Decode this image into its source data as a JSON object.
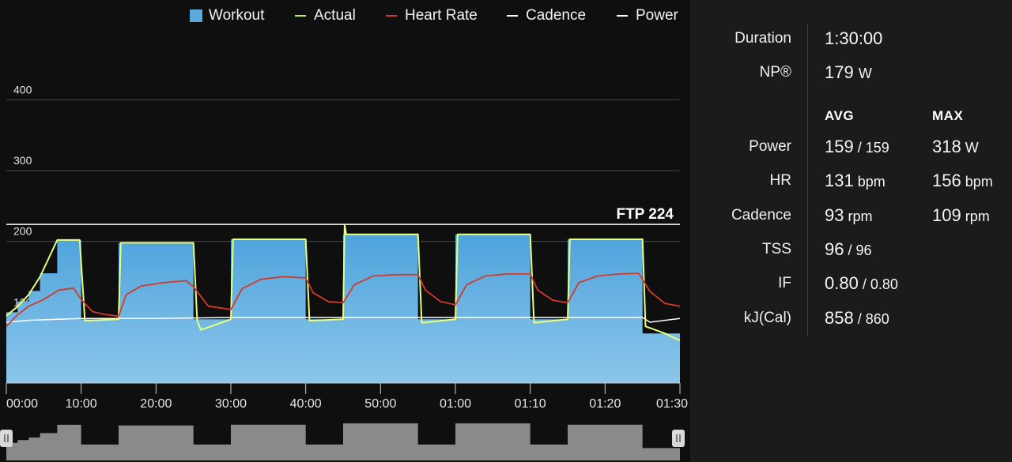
{
  "legend": {
    "workout": "Workout",
    "actual": "Actual",
    "heart_rate": "Heart Rate",
    "cadence": "Cadence",
    "power": "Power"
  },
  "colors": {
    "workout": "#5aaade",
    "actual": "#e8ff7a",
    "heart_rate": "#d23a2a",
    "cadence": "#ffffff",
    "power": "#ffffff"
  },
  "chart_data": {
    "type": "area",
    "xlabel": "",
    "ylabel": "",
    "x_ticks": [
      "00:00",
      "10:00",
      "20:00",
      "30:00",
      "40:00",
      "50:00",
      "01:00",
      "01:10",
      "01:20",
      "01:30"
    ],
    "y_ticks": [
      "100",
      "200",
      "300",
      "400"
    ],
    "xlim_minutes": [
      0,
      90
    ],
    "ylim_watts": [
      0,
      450
    ],
    "grid": "horizontal",
    "ftp_line": {
      "label": "FTP 224",
      "value": 224
    },
    "workout_steps": [
      {
        "start": 0,
        "end": 1.5,
        "watts": 100
      },
      {
        "start": 1.5,
        "end": 3,
        "watts": 115
      },
      {
        "start": 3,
        "end": 4.5,
        "watts": 130
      },
      {
        "start": 4.5,
        "end": 6.8,
        "watts": 155
      },
      {
        "start": 6.8,
        "end": 10,
        "watts": 202
      },
      {
        "start": 10,
        "end": 15,
        "watts": 90
      },
      {
        "start": 15,
        "end": 25,
        "watts": 198
      },
      {
        "start": 25,
        "end": 30,
        "watts": 90
      },
      {
        "start": 30,
        "end": 40,
        "watts": 203
      },
      {
        "start": 40,
        "end": 45,
        "watts": 90
      },
      {
        "start": 45,
        "end": 55,
        "watts": 210
      },
      {
        "start": 55,
        "end": 60,
        "watts": 90
      },
      {
        "start": 60,
        "end": 70,
        "watts": 210
      },
      {
        "start": 70,
        "end": 75,
        "watts": 90
      },
      {
        "start": 75,
        "end": 85,
        "watts": 203
      },
      {
        "start": 85,
        "end": 90,
        "watts": 70
      }
    ],
    "heart_rate_series": [
      [
        0,
        78
      ],
      [
        1.5,
        95
      ],
      [
        3,
        108
      ],
      [
        5,
        118
      ],
      [
        7,
        132
      ],
      [
        9,
        135
      ],
      [
        10,
        118
      ],
      [
        11.5,
        100
      ],
      [
        13,
        96
      ],
      [
        15,
        93
      ],
      [
        16,
        125
      ],
      [
        18,
        138
      ],
      [
        21,
        143
      ],
      [
        24,
        146
      ],
      [
        25,
        137
      ],
      [
        27,
        108
      ],
      [
        30,
        103
      ],
      [
        31.5,
        134
      ],
      [
        34,
        148
      ],
      [
        37,
        152
      ],
      [
        40,
        150
      ],
      [
        41,
        128
      ],
      [
        43,
        115
      ],
      [
        45,
        113
      ],
      [
        46.5,
        140
      ],
      [
        49,
        153
      ],
      [
        52,
        155
      ],
      [
        55,
        155
      ],
      [
        56,
        132
      ],
      [
        58,
        115
      ],
      [
        60,
        110
      ],
      [
        61.5,
        140
      ],
      [
        64,
        153
      ],
      [
        67,
        156
      ],
      [
        70,
        156
      ],
      [
        71,
        132
      ],
      [
        73,
        117
      ],
      [
        75,
        113
      ],
      [
        76.5,
        143
      ],
      [
        79,
        153
      ],
      [
        82,
        156
      ],
      [
        84.5,
        157
      ],
      [
        86,
        130
      ],
      [
        88,
        112
      ],
      [
        90,
        108
      ]
    ],
    "actual_series": [
      [
        0,
        95
      ],
      [
        1.5,
        108
      ],
      [
        3,
        125
      ],
      [
        4.5,
        150
      ],
      [
        6.8,
        202
      ],
      [
        9.8,
        202
      ],
      [
        10.5,
        88
      ],
      [
        15,
        90
      ],
      [
        15.3,
        198
      ],
      [
        25,
        198
      ],
      [
        25.5,
        88
      ],
      [
        26,
        75
      ],
      [
        30,
        90
      ],
      [
        30.3,
        203
      ],
      [
        40,
        203
      ],
      [
        40.5,
        88
      ],
      [
        45,
        90
      ],
      [
        45.2,
        224
      ],
      [
        45.4,
        210
      ],
      [
        55,
        210
      ],
      [
        55.5,
        85
      ],
      [
        60,
        90
      ],
      [
        60.3,
        210
      ],
      [
        70,
        210
      ],
      [
        70.5,
        85
      ],
      [
        75,
        90
      ],
      [
        75.3,
        203
      ],
      [
        85,
        203
      ],
      [
        85.4,
        80
      ],
      [
        88,
        70
      ],
      [
        90,
        60
      ]
    ],
    "cadence_series": [
      [
        0,
        88
      ],
      [
        3,
        90
      ],
      [
        10,
        92
      ],
      [
        20,
        92
      ],
      [
        30,
        93
      ],
      [
        40,
        93
      ],
      [
        50,
        93
      ],
      [
        60,
        93
      ],
      [
        70,
        93
      ],
      [
        80,
        93
      ],
      [
        85,
        93
      ],
      [
        86,
        88
      ],
      [
        90,
        92
      ]
    ]
  },
  "stats": {
    "duration": {
      "label": "Duration",
      "value": "1:30:00"
    },
    "np": {
      "label": "NP®",
      "value": "179",
      "unit": "W"
    },
    "avg_header": "AVG",
    "max_header": "MAX",
    "rows": [
      {
        "label": "Power",
        "avg": "159",
        "avg_sub": "/ 159",
        "max": "318",
        "max_unit": "W"
      },
      {
        "label": "HR",
        "avg": "131",
        "avg_sub": "bpm",
        "max": "156",
        "max_unit": "bpm"
      },
      {
        "label": "Cadence",
        "avg": "93",
        "avg_sub": "rpm",
        "max": "109",
        "max_unit": "rpm"
      },
      {
        "label": "TSS",
        "avg": "96",
        "avg_sub": "/ 96",
        "max": "",
        "max_unit": ""
      },
      {
        "label": "IF",
        "avg": "0.80",
        "avg_sub": "/ 0.80",
        "max": "",
        "max_unit": ""
      },
      {
        "label": "kJ(Cal)",
        "avg": "858",
        "avg_sub": "/ 860",
        "max": "",
        "max_unit": ""
      }
    ]
  }
}
